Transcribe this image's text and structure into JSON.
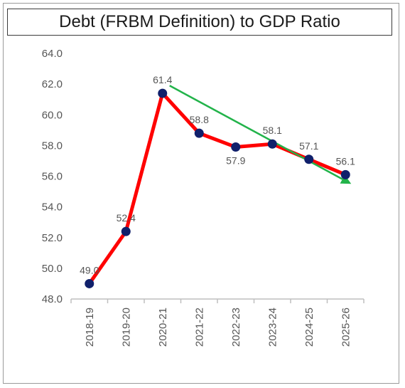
{
  "chart_data": {
    "type": "line",
    "title": "Debt (FRBM Definition) to GDP Ratio",
    "xlabel": "",
    "ylabel": "",
    "categories": [
      "2018-19",
      "2019-20",
      "2020-21",
      "2021-22",
      "2022-23",
      "2023-24",
      "2024-25",
      "2025-26"
    ],
    "y_tick_labels": [
      "48.0",
      "50.0",
      "52.0",
      "54.0",
      "56.0",
      "58.0",
      "60.0",
      "62.0",
      "64.0"
    ],
    "ylim": [
      48,
      64
    ],
    "series": [
      {
        "values": [
          49.0,
          52.4,
          61.4,
          58.8,
          57.9,
          58.1,
          57.1,
          56.1
        ],
        "data_labels": [
          "49.0",
          "52.4",
          "61.4",
          "58.8",
          "57.9",
          "58.1",
          "57.1",
          "56.1"
        ],
        "line_color": "#ff0000",
        "marker_color": "#10206b"
      }
    ],
    "trend_arrow": {
      "from": [
        "2020-21",
        61.9
      ],
      "to": [
        "2025-26",
        55.5
      ],
      "color": "#22b34a"
    },
    "grid": false,
    "legend": "none"
  }
}
